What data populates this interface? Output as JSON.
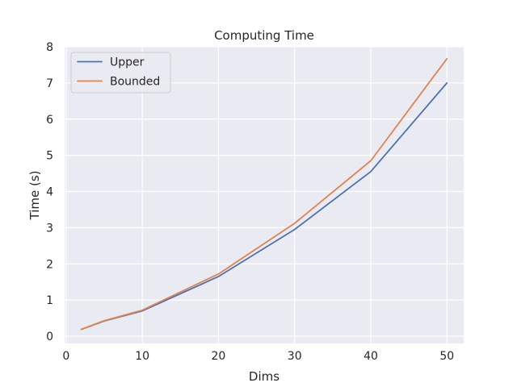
{
  "chart_data": {
    "type": "line",
    "title": "Computing Time",
    "xlabel": "Dims",
    "ylabel": "Time (s)",
    "xlim": [
      -0.2,
      52.2
    ],
    "ylim": [
      -0.2,
      8.0
    ],
    "xticks": [
      0,
      10,
      20,
      30,
      40,
      50
    ],
    "yticks": [
      0,
      1,
      2,
      3,
      4,
      5,
      6,
      7,
      8
    ],
    "grid": true,
    "legend_position": "top-left",
    "x": [
      2,
      5,
      10,
      20,
      30,
      40,
      50
    ],
    "series": [
      {
        "name": "Upper",
        "color": "#4c72b0",
        "values": [
          0.19,
          0.42,
          0.7,
          1.65,
          2.95,
          4.55,
          7.0
        ]
      },
      {
        "name": "Bounded",
        "color": "#dd8452",
        "values": [
          0.19,
          0.43,
          0.72,
          1.72,
          3.12,
          4.85,
          7.67
        ]
      }
    ]
  }
}
